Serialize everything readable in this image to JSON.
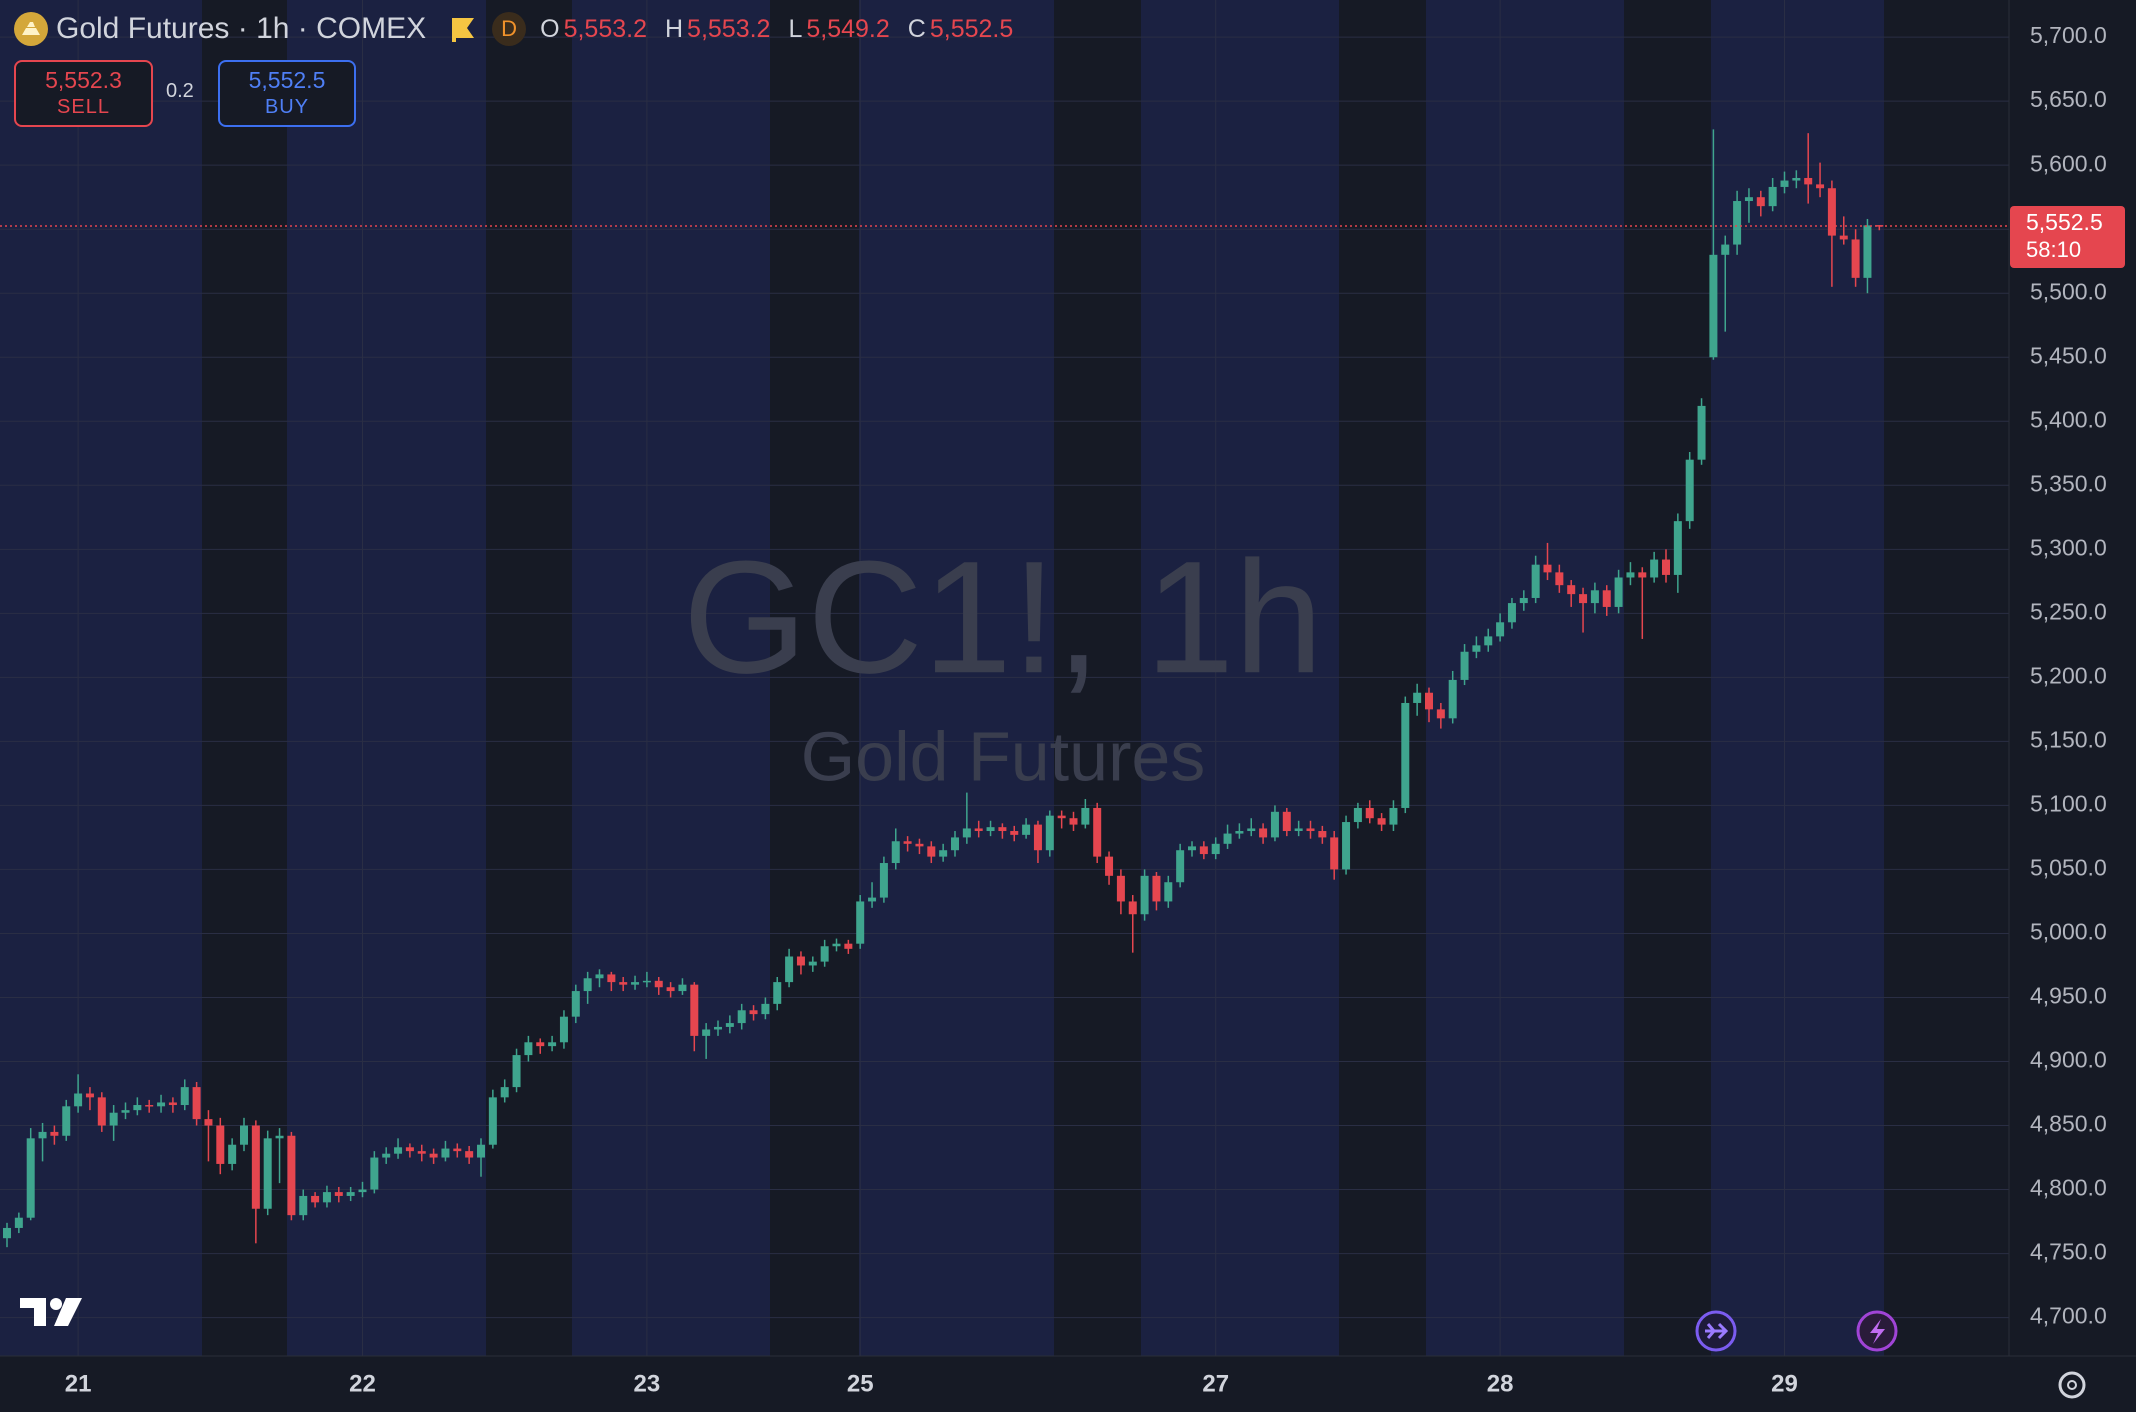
{
  "toolbar": {
    "symbol": "Gold Futures · 1h · COMEX",
    "badge": "D",
    "o_key": "O",
    "open": "5,553.2",
    "h_key": "H",
    "high": "5,553.2",
    "l_key": "L",
    "low": "5,549.2",
    "c_key": "C",
    "close": "5,552.5",
    "sell_price": "5,552.3",
    "sell_label": "SELL",
    "spread": "0.2",
    "buy_price": "5,552.5",
    "buy_label": "BUY"
  },
  "chart_data": {
    "type": "candlestick",
    "watermark": "GC1!, 1h",
    "watermark_subtitle": "Gold Futures",
    "up_color": "#3fa58e",
    "down_color": "#e5464f",
    "grid": true,
    "last_price_label": "5,552.5",
    "countdown": "58:10",
    "ylim": [
      4670,
      5729
    ],
    "yticks": [
      {
        "value": 4700,
        "label": "4,700.0"
      },
      {
        "value": 4750,
        "label": "4,750.0"
      },
      {
        "value": 4800,
        "label": "4,800.0"
      },
      {
        "value": 4850,
        "label": "4,850.0"
      },
      {
        "value": 4900,
        "label": "4,900.0"
      },
      {
        "value": 4950,
        "label": "4,950.0"
      },
      {
        "value": 5000,
        "label": "5,000.0"
      },
      {
        "value": 5050,
        "label": "5,050.0"
      },
      {
        "value": 5100,
        "label": "5,100.0"
      },
      {
        "value": 5150,
        "label": "5,150.0"
      },
      {
        "value": 5200,
        "label": "5,200.0"
      },
      {
        "value": 5250,
        "label": "5,250.0"
      },
      {
        "value": 5300,
        "label": "5,300.0"
      },
      {
        "value": 5350,
        "label": "5,350.0"
      },
      {
        "value": 5400,
        "label": "5,400.0"
      },
      {
        "value": 5450,
        "label": "5,450.0"
      },
      {
        "value": 5500,
        "label": "5,500.0"
      },
      {
        "value": 5550,
        "label": "5,550.0"
      },
      {
        "value": 5600,
        "label": "5,600.0"
      },
      {
        "value": 5650,
        "label": "5,650.0"
      },
      {
        "value": 5700,
        "label": "5,700.0"
      }
    ],
    "categories": [
      null,
      null,
      null,
      null,
      null,
      null,
      "21",
      null,
      null,
      null,
      null,
      null,
      null,
      null,
      null,
      null,
      null,
      null,
      null,
      null,
      null,
      null,
      null,
      null,
      null,
      null,
      null,
      null,
      null,
      null,
      "22",
      null,
      null,
      null,
      null,
      null,
      null,
      null,
      null,
      null,
      null,
      null,
      null,
      null,
      null,
      null,
      null,
      null,
      null,
      null,
      null,
      null,
      null,
      null,
      "23",
      null,
      null,
      null,
      null,
      null,
      null,
      null,
      null,
      null,
      null,
      null,
      null,
      null,
      null,
      null,
      null,
      null,
      "25",
      null,
      null,
      null,
      null,
      null,
      null,
      null,
      null,
      null,
      null,
      null,
      null,
      null,
      null,
      null,
      null,
      null,
      null,
      null,
      null,
      null,
      null,
      null,
      null,
      null,
      null,
      null,
      null,
      null,
      "27",
      null,
      null,
      null,
      null,
      null,
      null,
      null,
      null,
      null,
      null,
      null,
      null,
      null,
      null,
      null,
      null,
      null,
      null,
      null,
      null,
      null,
      null,
      null,
      "28",
      null,
      null,
      null,
      null,
      null,
      null,
      null,
      null,
      null,
      null,
      null,
      null,
      null,
      null,
      null,
      null,
      null,
      null,
      null,
      null,
      null,
      null,
      null,
      "29",
      null,
      null,
      null,
      null,
      null,
      null,
      null,
      null
    ],
    "ohlc": [
      [
        4762,
        4774,
        4755,
        4770
      ],
      [
        4770,
        4782,
        4766,
        4778
      ],
      [
        4778,
        4848,
        4776,
        4840
      ],
      [
        4840,
        4852,
        4822,
        4845
      ],
      [
        4845,
        4850,
        4835,
        4842
      ],
      [
        4842,
        4870,
        4838,
        4865
      ],
      [
        4865,
        4890,
        4860,
        4875
      ],
      [
        4875,
        4880,
        4862,
        4872
      ],
      [
        4872,
        4876,
        4845,
        4850
      ],
      [
        4850,
        4866,
        4838,
        4860
      ],
      [
        4860,
        4868,
        4855,
        4862
      ],
      [
        4862,
        4872,
        4858,
        4866
      ],
      [
        4866,
        4870,
        4860,
        4865
      ],
      [
        4865,
        4874,
        4860,
        4868
      ],
      [
        4868,
        4872,
        4860,
        4866
      ],
      [
        4866,
        4886,
        4862,
        4880
      ],
      [
        4880,
        4884,
        4850,
        4855
      ],
      [
        4855,
        4862,
        4822,
        4850
      ],
      [
        4850,
        4856,
        4812,
        4820
      ],
      [
        4820,
        4840,
        4815,
        4835
      ],
      [
        4835,
        4856,
        4830,
        4850
      ],
      [
        4850,
        4854,
        4758,
        4785
      ],
      [
        4785,
        4846,
        4780,
        4840
      ],
      [
        4840,
        4848,
        4805,
        4842
      ],
      [
        4842,
        4845,
        4776,
        4780
      ],
      [
        4780,
        4800,
        4776,
        4795
      ],
      [
        4795,
        4798,
        4786,
        4790
      ],
      [
        4790,
        4803,
        4786,
        4798
      ],
      [
        4798,
        4802,
        4790,
        4795
      ],
      [
        4795,
        4802,
        4791,
        4798
      ],
      [
        4798,
        4806,
        4794,
        4800
      ],
      [
        4800,
        4830,
        4797,
        4825
      ],
      [
        4825,
        4833,
        4820,
        4828
      ],
      [
        4828,
        4840,
        4824,
        4833
      ],
      [
        4833,
        4836,
        4825,
        4830
      ],
      [
        4830,
        4835,
        4822,
        4828
      ],
      [
        4828,
        4832,
        4820,
        4825
      ],
      [
        4825,
        4838,
        4822,
        4832
      ],
      [
        4832,
        4836,
        4825,
        4830
      ],
      [
        4830,
        4834,
        4820,
        4825
      ],
      [
        4825,
        4840,
        4810,
        4835
      ],
      [
        4835,
        4878,
        4832,
        4872
      ],
      [
        4872,
        4886,
        4868,
        4880
      ],
      [
        4880,
        4910,
        4876,
        4905
      ],
      [
        4905,
        4920,
        4900,
        4915
      ],
      [
        4915,
        4918,
        4906,
        4912
      ],
      [
        4912,
        4920,
        4908,
        4915
      ],
      [
        4915,
        4940,
        4910,
        4935
      ],
      [
        4935,
        4960,
        4930,
        4955
      ],
      [
        4955,
        4970,
        4945,
        4965
      ],
      [
        4965,
        4972,
        4958,
        4968
      ],
      [
        4968,
        4970,
        4955,
        4962
      ],
      [
        4962,
        4966,
        4955,
        4960
      ],
      [
        4960,
        4967,
        4956,
        4962
      ],
      [
        4962,
        4970,
        4958,
        4963
      ],
      [
        4963,
        4966,
        4952,
        4958
      ],
      [
        4958,
        4962,
        4950,
        4955
      ],
      [
        4955,
        4965,
        4952,
        4960
      ],
      [
        4960,
        4962,
        4908,
        4920
      ],
      [
        4920,
        4930,
        4902,
        4925
      ],
      [
        4925,
        4932,
        4920,
        4927
      ],
      [
        4927,
        4936,
        4922,
        4930
      ],
      [
        4930,
        4945,
        4925,
        4940
      ],
      [
        4940,
        4944,
        4932,
        4937
      ],
      [
        4937,
        4950,
        4933,
        4945
      ],
      [
        4945,
        4966,
        4940,
        4962
      ],
      [
        4962,
        4988,
        4958,
        4982
      ],
      [
        4982,
        4986,
        4968,
        4975
      ],
      [
        4975,
        4982,
        4970,
        4978
      ],
      [
        4978,
        4995,
        4974,
        4990
      ],
      [
        4990,
        4996,
        4986,
        4992
      ],
      [
        4992,
        4995,
        4984,
        4988
      ],
      [
        4992,
        5030,
        4988,
        5025
      ],
      [
        5025,
        5040,
        5020,
        5028
      ],
      [
        5028,
        5060,
        5024,
        5055
      ],
      [
        5055,
        5082,
        5050,
        5072
      ],
      [
        5072,
        5076,
        5064,
        5070
      ],
      [
        5070,
        5074,
        5062,
        5068
      ],
      [
        5068,
        5072,
        5055,
        5060
      ],
      [
        5060,
        5070,
        5056,
        5065
      ],
      [
        5065,
        5080,
        5060,
        5075
      ],
      [
        5075,
        5110,
        5070,
        5082
      ],
      [
        5082,
        5088,
        5075,
        5080
      ],
      [
        5080,
        5088,
        5076,
        5083
      ],
      [
        5083,
        5086,
        5074,
        5080
      ],
      [
        5080,
        5084,
        5072,
        5077
      ],
      [
        5077,
        5090,
        5074,
        5085
      ],
      [
        5085,
        5088,
        5055,
        5065
      ],
      [
        5065,
        5096,
        5060,
        5092
      ],
      [
        5092,
        5096,
        5082,
        5090
      ],
      [
        5090,
        5095,
        5080,
        5085
      ],
      [
        5085,
        5105,
        5082,
        5098
      ],
      [
        5098,
        5102,
        5055,
        5060
      ],
      [
        5060,
        5064,
        5038,
        5045
      ],
      [
        5045,
        5050,
        5015,
        5025
      ],
      [
        5025,
        5030,
        4985,
        5015
      ],
      [
        5015,
        5050,
        5010,
        5045
      ],
      [
        5045,
        5048,
        5018,
        5025
      ],
      [
        5025,
        5045,
        5020,
        5040
      ],
      [
        5040,
        5070,
        5036,
        5065
      ],
      [
        5065,
        5072,
        5060,
        5068
      ],
      [
        5068,
        5072,
        5058,
        5062
      ],
      [
        5062,
        5075,
        5058,
        5070
      ],
      [
        5070,
        5085,
        5066,
        5078
      ],
      [
        5078,
        5086,
        5074,
        5080
      ],
      [
        5080,
        5090,
        5076,
        5082
      ],
      [
        5082,
        5086,
        5070,
        5075
      ],
      [
        5075,
        5100,
        5072,
        5095
      ],
      [
        5095,
        5098,
        5076,
        5080
      ],
      [
        5080,
        5088,
        5076,
        5082
      ],
      [
        5082,
        5088,
        5074,
        5080
      ],
      [
        5080,
        5084,
        5070,
        5075
      ],
      [
        5075,
        5080,
        5042,
        5050
      ],
      [
        5050,
        5092,
        5046,
        5087
      ],
      [
        5087,
        5102,
        5082,
        5098
      ],
      [
        5098,
        5104,
        5086,
        5090
      ],
      [
        5090,
        5094,
        5080,
        5085
      ],
      [
        5085,
        5104,
        5080,
        5098
      ],
      [
        5098,
        5185,
        5094,
        5180
      ],
      [
        5180,
        5195,
        5170,
        5188
      ],
      [
        5188,
        5192,
        5165,
        5175
      ],
      [
        5175,
        5180,
        5160,
        5168
      ],
      [
        5168,
        5205,
        5164,
        5198
      ],
      [
        5198,
        5226,
        5194,
        5220
      ],
      [
        5220,
        5232,
        5215,
        5225
      ],
      [
        5225,
        5238,
        5220,
        5232
      ],
      [
        5232,
        5250,
        5228,
        5243
      ],
      [
        5243,
        5262,
        5238,
        5258
      ],
      [
        5258,
        5268,
        5252,
        5262
      ],
      [
        5262,
        5295,
        5258,
        5288
      ],
      [
        5288,
        5305,
        5276,
        5282
      ],
      [
        5282,
        5288,
        5266,
        5272
      ],
      [
        5272,
        5276,
        5255,
        5265
      ],
      [
        5265,
        5270,
        5235,
        5258
      ],
      [
        5258,
        5274,
        5250,
        5268
      ],
      [
        5268,
        5272,
        5248,
        5255
      ],
      [
        5255,
        5284,
        5250,
        5278
      ],
      [
        5278,
        5290,
        5272,
        5282
      ],
      [
        5282,
        5286,
        5230,
        5278
      ],
      [
        5278,
        5298,
        5274,
        5292
      ],
      [
        5292,
        5300,
        5274,
        5280
      ],
      [
        5280,
        5328,
        5266,
        5322
      ],
      [
        5322,
        5376,
        5316,
        5370
      ],
      [
        5370,
        5418,
        5366,
        5412
      ],
      [
        5450,
        5628,
        5448,
        5530
      ],
      [
        5530,
        5545,
        5470,
        5538
      ],
      [
        5538,
        5580,
        5530,
        5572
      ],
      [
        5572,
        5582,
        5555,
        5575
      ],
      [
        5575,
        5580,
        5560,
        5568
      ],
      [
        5568,
        5590,
        5564,
        5583
      ],
      [
        5583,
        5595,
        5578,
        5588
      ],
      [
        5588,
        5596,
        5582,
        5590
      ],
      [
        5590,
        5625,
        5570,
        5585
      ],
      [
        5585,
        5602,
        5575,
        5582
      ],
      [
        5582,
        5588,
        5505,
        5545
      ],
      [
        5545,
        5560,
        5538,
        5542
      ],
      [
        5542,
        5550,
        5505,
        5512
      ],
      [
        5512,
        5558,
        5500,
        5553
      ],
      [
        5553.2,
        5553.2,
        5549.2,
        5552.5
      ]
    ]
  }
}
